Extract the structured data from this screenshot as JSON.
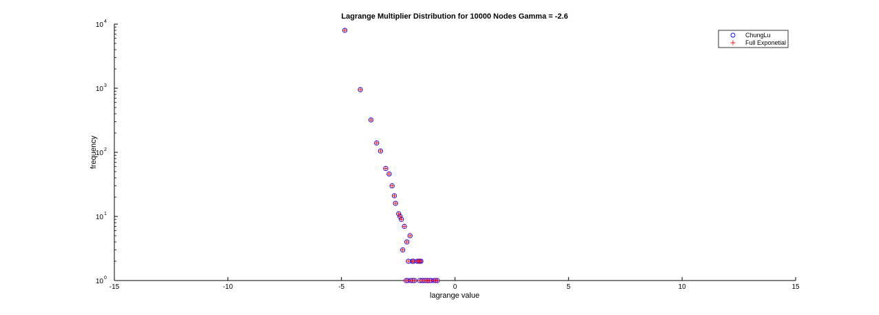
{
  "chart_data": {
    "type": "scatter",
    "title": "Lagrange Multiplier Distribution for 10000 Nodes Gamma = -2.6",
    "xlabel": "lagrange value",
    "ylabel": "frequency",
    "xlim": [
      -15,
      15
    ],
    "ylim": [
      1,
      10000
    ],
    "yscale": "log",
    "grid": false,
    "legend_position": "top-right",
    "x_ticks": [
      -15,
      -10,
      -5,
      0,
      5,
      10,
      15
    ],
    "x_tick_labels": [
      "-15",
      "-10",
      "-5",
      "0",
      "5",
      "10",
      "15"
    ],
    "y_ticks": [
      1,
      10,
      100,
      1000,
      10000
    ],
    "y_tick_labels": [
      {
        "base": "10",
        "exp": "0"
      },
      {
        "base": "10",
        "exp": "1"
      },
      {
        "base": "10",
        "exp": "2"
      },
      {
        "base": "10",
        "exp": "3"
      },
      {
        "base": "10",
        "exp": "4"
      }
    ],
    "series": [
      {
        "name": "ChungLu",
        "marker": "circle",
        "color": "#0000ff",
        "points": [
          [
            -4.85,
            8000
          ],
          [
            -4.17,
            950
          ],
          [
            -3.7,
            320
          ],
          [
            -3.45,
            140
          ],
          [
            -3.28,
            105
          ],
          [
            -3.05,
            56
          ],
          [
            -2.9,
            46
          ],
          [
            -2.77,
            30
          ],
          [
            -2.67,
            21
          ],
          [
            -2.62,
            16
          ],
          [
            -2.48,
            11
          ],
          [
            -2.42,
            10
          ],
          [
            -2.36,
            9
          ],
          [
            -2.3,
            3
          ],
          [
            -2.23,
            7
          ],
          [
            -2.12,
            4
          ],
          [
            -2.05,
            2
          ],
          [
            -1.98,
            5
          ],
          [
            -1.88,
            2
          ],
          [
            -1.83,
            2
          ],
          [
            -1.65,
            2
          ],
          [
            -1.6,
            2
          ],
          [
            -1.55,
            2
          ],
          [
            -1.5,
            2
          ],
          [
            -2.15,
            1
          ],
          [
            -2.08,
            1
          ],
          [
            -1.95,
            1
          ],
          [
            -1.85,
            1
          ],
          [
            -1.78,
            1
          ],
          [
            -1.55,
            1
          ],
          [
            -1.45,
            1
          ],
          [
            -1.35,
            1
          ],
          [
            -1.28,
            1
          ],
          [
            -1.2,
            1
          ],
          [
            -1.12,
            1
          ],
          [
            -1.05,
            1
          ],
          [
            -0.92,
            1
          ],
          [
            -0.85,
            1
          ],
          [
            -0.78,
            1
          ]
        ]
      },
      {
        "name": "Full Exponetial",
        "marker": "plus",
        "color": "#ff0000",
        "points": [
          [
            -4.85,
            8000
          ],
          [
            -4.17,
            950
          ],
          [
            -3.7,
            320
          ],
          [
            -3.45,
            140
          ],
          [
            -3.28,
            105
          ],
          [
            -3.05,
            56
          ],
          [
            -2.9,
            46
          ],
          [
            -2.77,
            30
          ],
          [
            -2.67,
            21
          ],
          [
            -2.62,
            16
          ],
          [
            -2.48,
            11
          ],
          [
            -2.42,
            10
          ],
          [
            -2.36,
            9
          ],
          [
            -2.3,
            3
          ],
          [
            -2.23,
            7
          ],
          [
            -2.12,
            4
          ],
          [
            -2.05,
            2
          ],
          [
            -1.98,
            5
          ],
          [
            -1.88,
            2
          ],
          [
            -1.83,
            2
          ],
          [
            -1.65,
            2
          ],
          [
            -1.6,
            2
          ],
          [
            -1.55,
            2
          ],
          [
            -1.5,
            2
          ],
          [
            -2.15,
            1
          ],
          [
            -2.08,
            1
          ],
          [
            -1.95,
            1
          ],
          [
            -1.85,
            1
          ],
          [
            -1.78,
            1
          ],
          [
            -1.55,
            1
          ],
          [
            -1.45,
            1
          ],
          [
            -1.35,
            1
          ],
          [
            -1.28,
            1
          ],
          [
            -1.2,
            1
          ],
          [
            -1.12,
            1
          ],
          [
            -1.05,
            1
          ],
          [
            -0.92,
            1
          ],
          [
            -0.85,
            1
          ],
          [
            -0.78,
            1
          ]
        ]
      }
    ]
  }
}
